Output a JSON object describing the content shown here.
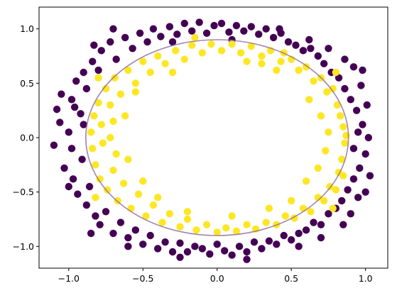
{
  "chart_data": {
    "type": "scatter",
    "title": "",
    "xlabel": "",
    "ylabel": "",
    "xlim": [
      -1.2,
      1.15
    ],
    "ylim": [
      -1.2,
      1.2
    ],
    "x_ticks": [
      {
        "value": -1.0,
        "label": "−1.0"
      },
      {
        "value": -0.5,
        "label": "−0.5"
      },
      {
        "value": 0.0,
        "label": "0.0"
      },
      {
        "value": 0.5,
        "label": "0.5"
      },
      {
        "value": 1.0,
        "label": "1.0"
      }
    ],
    "y_ticks": [
      {
        "value": -1.0,
        "label": "−1.0"
      },
      {
        "value": -0.5,
        "label": "−0.5"
      },
      {
        "value": 0.0,
        "label": "0.0"
      },
      {
        "value": 0.5,
        "label": "0.5"
      },
      {
        "value": 1.0,
        "label": "1.0"
      }
    ],
    "grid": false,
    "legend": "none",
    "colors": {
      "class_0": "#440154",
      "class_1": "#fde725",
      "decision_boundary": "#8a6a9c"
    },
    "decision_boundary": {
      "shape": "ellipse",
      "center": [
        0.0,
        0.0
      ],
      "radius_x": 0.885,
      "radius_y": 0.9,
      "opacity": 0.8
    },
    "series": [
      {
        "class": 0,
        "color": "#440154",
        "points": [
          [
            -1.08,
            0.26
          ],
          [
            -1.1,
            -0.07
          ],
          [
            -1.06,
            0.14
          ],
          [
            -1.03,
            -0.28
          ],
          [
            -1.0,
            0.05
          ],
          [
            -0.98,
            0.35
          ],
          [
            -0.97,
            -0.38
          ],
          [
            -0.95,
            0.52
          ],
          [
            -0.94,
            -0.52
          ],
          [
            -0.92,
            0.22
          ],
          [
            -0.91,
            -0.2
          ],
          [
            -0.9,
            0.6
          ],
          [
            -0.88,
            -0.62
          ],
          [
            -0.9,
            0.12
          ],
          [
            -0.88,
            0.45
          ],
          [
            -0.86,
            -0.45
          ],
          [
            -0.84,
            0.7
          ],
          [
            -0.82,
            -0.72
          ],
          [
            -0.8,
            0.62
          ],
          [
            -0.79,
            -0.8
          ],
          [
            -0.78,
            0.8
          ],
          [
            -0.75,
            -0.68
          ],
          [
            -0.72,
            0.88
          ],
          [
            -0.7,
            -0.88
          ],
          [
            -0.68,
            0.72
          ],
          [
            -0.65,
            -0.78
          ],
          [
            -0.62,
            0.92
          ],
          [
            -0.6,
            -0.92
          ],
          [
            -0.57,
            0.82
          ],
          [
            -0.55,
            -0.85
          ],
          [
            -0.52,
            0.96
          ],
          [
            -0.5,
            -0.98
          ],
          [
            -0.47,
            0.88
          ],
          [
            -0.45,
            -0.9
          ],
          [
            -0.43,
            1.0
          ],
          [
            -0.4,
            -1.02
          ],
          [
            -0.38,
            0.93
          ],
          [
            -0.35,
            -0.96
          ],
          [
            -0.32,
            1.02
          ],
          [
            -0.3,
            -1.05
          ],
          [
            -0.27,
            0.95
          ],
          [
            -0.25,
            -0.97
          ],
          [
            -0.22,
            1.05
          ],
          [
            -0.2,
            -1.05
          ],
          [
            -0.17,
            0.98
          ],
          [
            -0.15,
            -1.0
          ],
          [
            -0.12,
            1.06
          ],
          [
            -0.1,
            -1.02
          ],
          [
            -0.07,
            0.96
          ],
          [
            -0.05,
            -1.07
          ],
          [
            -0.02,
            1.03
          ],
          [
            0.0,
            -0.98
          ],
          [
            0.03,
            1.05
          ],
          [
            0.05,
            -1.04
          ],
          [
            0.08,
            0.97
          ],
          [
            0.1,
            -1.08
          ],
          [
            0.13,
            1.03
          ],
          [
            0.15,
            -1.0
          ],
          [
            0.18,
            0.98
          ],
          [
            0.2,
            -1.05
          ],
          [
            0.23,
            1.02
          ],
          [
            0.25,
            -0.96
          ],
          [
            0.28,
            0.95
          ],
          [
            0.3,
            -1.02
          ],
          [
            0.33,
            1.0
          ],
          [
            0.35,
            -0.95
          ],
          [
            0.38,
            0.92
          ],
          [
            0.4,
            -0.98
          ],
          [
            0.43,
            0.96
          ],
          [
            0.45,
            -0.9
          ],
          [
            0.48,
            0.88
          ],
          [
            0.5,
            -0.94
          ],
          [
            0.53,
            0.85
          ],
          [
            0.55,
            -0.88
          ],
          [
            0.58,
            0.8
          ],
          [
            0.6,
            -0.85
          ],
          [
            0.63,
            0.82
          ],
          [
            0.65,
            -0.78
          ],
          [
            0.68,
            0.75
          ],
          [
            0.7,
            -0.8
          ],
          [
            0.72,
            0.68
          ],
          [
            0.75,
            -0.7
          ],
          [
            0.77,
            0.6
          ],
          [
            0.8,
            -0.65
          ],
          [
            0.82,
            0.55
          ],
          [
            0.84,
            -0.58
          ],
          [
            0.86,
            0.45
          ],
          [
            0.88,
            -0.48
          ],
          [
            0.9,
            0.35
          ],
          [
            0.92,
            -0.38
          ],
          [
            0.94,
            0.25
          ],
          [
            0.96,
            -0.28
          ],
          [
            0.98,
            0.12
          ],
          [
            1.0,
            -0.15
          ],
          [
            1.02,
            0.0
          ],
          [
            1.03,
            -0.35
          ],
          [
            1.01,
            0.3
          ],
          [
            0.97,
            0.48
          ],
          [
            0.95,
            -0.55
          ],
          [
            0.92,
            0.65
          ],
          [
            0.9,
            -0.7
          ],
          [
            0.86,
            0.72
          ],
          [
            0.85,
            -0.8
          ],
          [
            0.95,
            0.05
          ],
          [
            0.92,
            -0.1
          ],
          [
            -0.98,
            -0.1
          ],
          [
            -1.05,
            0.4
          ],
          [
            -0.96,
            0.28
          ],
          [
            -0.83,
            0.85
          ],
          [
            -0.7,
            1.0
          ],
          [
            -0.3,
            0.88
          ],
          [
            0.1,
            0.9
          ],
          [
            0.42,
            1.0
          ],
          [
            0.62,
            0.9
          ],
          [
            0.75,
            0.82
          ],
          [
            -0.6,
            -1.0
          ],
          [
            -0.25,
            -1.1
          ],
          [
            0.2,
            -1.12
          ],
          [
            0.55,
            -1.0
          ],
          [
            0.7,
            -0.92
          ],
          [
            -0.85,
            -0.88
          ],
          [
            -1.0,
            -0.45
          ],
          [
            0.98,
            0.62
          ],
          [
            1.0,
            -0.5
          ]
        ]
      },
      {
        "class": 1,
        "color": "#fde725",
        "points": [
          [
            -0.85,
            0.05
          ],
          [
            -0.84,
            -0.1
          ],
          [
            -0.83,
            0.2
          ],
          [
            -0.82,
            -0.25
          ],
          [
            -0.8,
            0.32
          ],
          [
            -0.79,
            -0.38
          ],
          [
            -0.78,
            0.12
          ],
          [
            -0.77,
            -0.05
          ],
          [
            -0.75,
            0.45
          ],
          [
            -0.74,
            -0.48
          ],
          [
            -0.72,
            0.3
          ],
          [
            -0.7,
            -0.3
          ],
          [
            -0.69,
            0.55
          ],
          [
            -0.67,
            -0.58
          ],
          [
            -0.65,
            0.4
          ],
          [
            -0.63,
            -0.42
          ],
          [
            -0.6,
            0.62
          ],
          [
            -0.58,
            -0.65
          ],
          [
            -0.55,
            0.5
          ],
          [
            -0.53,
            -0.52
          ],
          [
            -0.5,
            0.7
          ],
          [
            -0.48,
            -0.72
          ],
          [
            -0.45,
            0.6
          ],
          [
            -0.43,
            -0.62
          ],
          [
            -0.4,
            0.75
          ],
          [
            -0.37,
            -0.78
          ],
          [
            -0.35,
            0.68
          ],
          [
            -0.32,
            -0.7
          ],
          [
            -0.28,
            0.8
          ],
          [
            -0.25,
            -0.82
          ],
          [
            -0.22,
            0.72
          ],
          [
            -0.2,
            -0.75
          ],
          [
            -0.17,
            0.85
          ],
          [
            -0.14,
            -0.85
          ],
          [
            -0.1,
            0.78
          ],
          [
            -0.07,
            -0.8
          ],
          [
            -0.04,
            0.86
          ],
          [
            0.0,
            -0.87
          ],
          [
            0.03,
            0.8
          ],
          [
            0.06,
            -0.83
          ],
          [
            0.1,
            0.86
          ],
          [
            0.13,
            -0.86
          ],
          [
            0.16,
            0.78
          ],
          [
            0.2,
            -0.8
          ],
          [
            0.23,
            0.84
          ],
          [
            0.26,
            -0.84
          ],
          [
            0.3,
            0.75
          ],
          [
            0.33,
            -0.78
          ],
          [
            0.36,
            0.8
          ],
          [
            0.4,
            -0.8
          ],
          [
            0.43,
            0.7
          ],
          [
            0.46,
            -0.72
          ],
          [
            0.5,
            0.72
          ],
          [
            0.52,
            -0.74
          ],
          [
            0.55,
            0.62
          ],
          [
            0.58,
            -0.65
          ],
          [
            0.6,
            0.65
          ],
          [
            0.63,
            -0.68
          ],
          [
            0.65,
            0.52
          ],
          [
            0.68,
            -0.55
          ],
          [
            0.7,
            0.55
          ],
          [
            0.72,
            -0.58
          ],
          [
            0.74,
            0.42
          ],
          [
            0.76,
            -0.45
          ],
          [
            0.78,
            0.45
          ],
          [
            0.8,
            -0.48
          ],
          [
            0.81,
            0.3
          ],
          [
            0.82,
            -0.32
          ],
          [
            0.83,
            0.2
          ],
          [
            0.84,
            -0.2
          ],
          [
            0.85,
            0.1
          ],
          [
            0.86,
            -0.05
          ],
          [
            0.87,
            0.02
          ],
          [
            0.75,
            0.05
          ],
          [
            0.73,
            -0.12
          ],
          [
            0.7,
            0.2
          ],
          [
            0.68,
            -0.28
          ],
          [
            0.62,
            0.35
          ],
          [
            0.6,
            -0.4
          ],
          [
            -0.72,
            0.0
          ],
          [
            -0.7,
            0.15
          ],
          [
            -0.68,
            -0.15
          ],
          [
            -0.62,
            0.2
          ],
          [
            -0.6,
            -0.2
          ],
          [
            0.4,
            0.62
          ],
          [
            0.3,
            0.68
          ],
          [
            0.2,
            0.7
          ],
          [
            -0.3,
            0.6
          ],
          [
            -0.4,
            -0.55
          ],
          [
            -0.2,
            -0.68
          ],
          [
            0.1,
            -0.72
          ],
          [
            0.35,
            -0.65
          ],
          [
            0.5,
            -0.58
          ],
          [
            -0.55,
            0.42
          ],
          [
            -0.5,
            -0.4
          ],
          [
            0.8,
            0.6
          ],
          [
            -0.8,
            0.55
          ],
          [
            -0.82,
            -0.55
          ],
          [
            0.78,
            -0.65
          ],
          [
            0.45,
            0.78
          ],
          [
            -0.15,
            0.92
          ],
          [
            0.85,
            -0.35
          ]
        ]
      }
    ]
  }
}
